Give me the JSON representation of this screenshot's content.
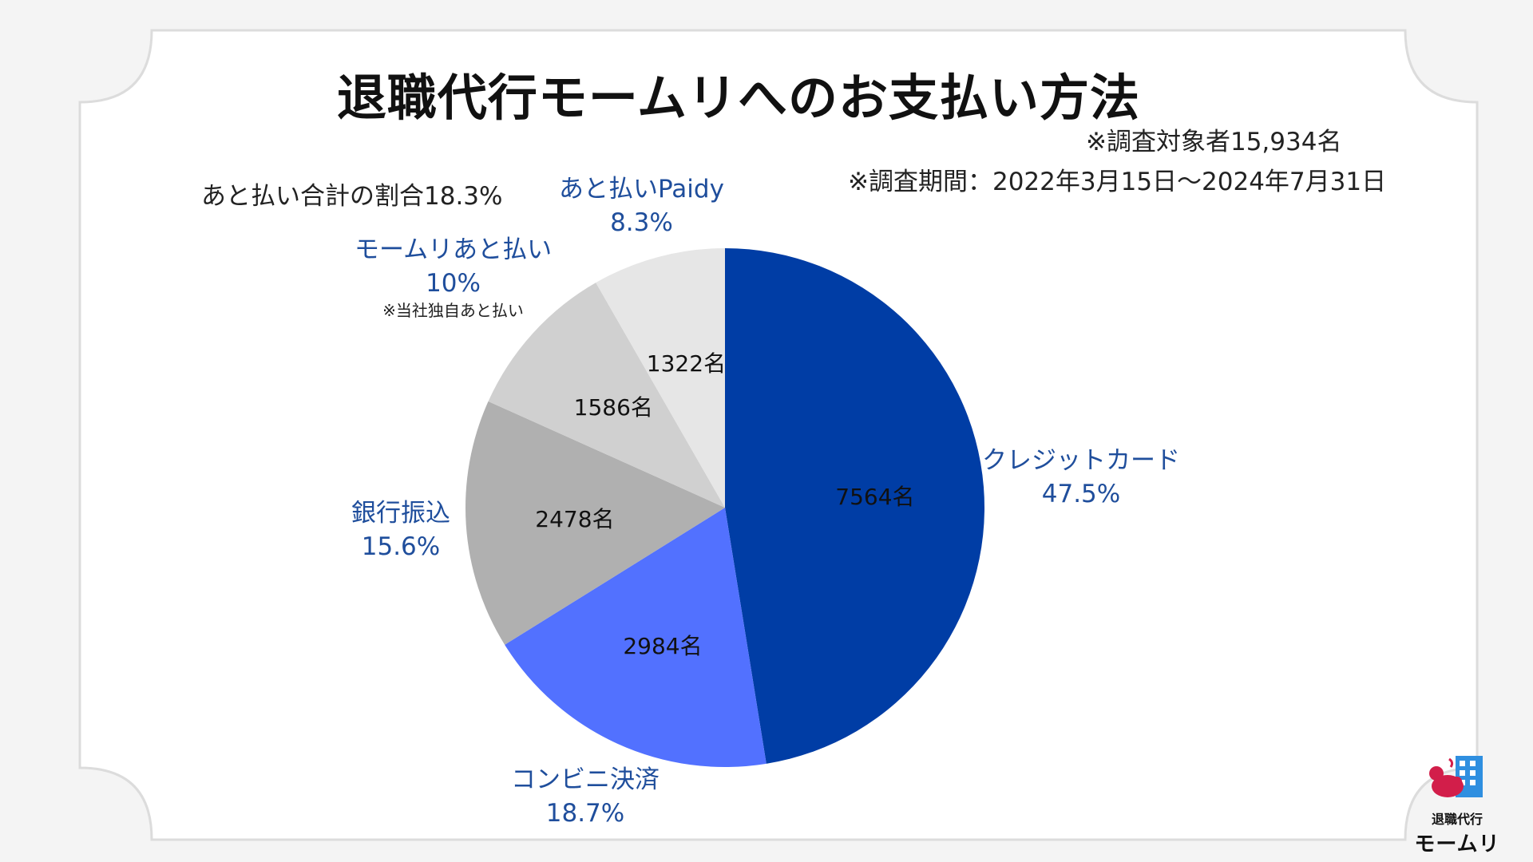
{
  "title": "退職代行モームリへのお支払い方法",
  "notes": {
    "respondents": "※調査対象者15,934名",
    "period": "※調査期間：2022年3月15日～2024年7月31日",
    "deferred_total": "あと払い合計の割合18.3%"
  },
  "colors": {
    "credit": "#003da5",
    "convenience": "#5271ff",
    "bank": "#b0b0b0",
    "momuri_later": "#d0d0d0",
    "paidy": "#e6e6e6",
    "label_blue": "#1f4e9c"
  },
  "chart_data": {
    "type": "pie",
    "title": "退職代行モームリへのお支払い方法",
    "total_respondents": "15,934名",
    "slices": [
      {
        "key": "credit",
        "label": "クレジットカード",
        "percent": 47.5,
        "percent_label": "47.5%",
        "count": 7564,
        "count_label": "7564名"
      },
      {
        "key": "convenience",
        "label": "コンビニ決済",
        "percent": 18.7,
        "percent_label": "18.7%",
        "count": 2984,
        "count_label": "2984名"
      },
      {
        "key": "bank",
        "label": "銀行振込",
        "percent": 15.6,
        "percent_label": "15.6%",
        "count": 2478,
        "count_label": "2478名"
      },
      {
        "key": "momuri_later",
        "label": "モームリあと払い",
        "percent": 10.0,
        "percent_label": "10%",
        "count": 1586,
        "count_label": "1586名",
        "sub_label": "※当社独自あと払い"
      },
      {
        "key": "paidy",
        "label": "あと払いPaidy",
        "percent": 8.3,
        "percent_label": "8.3%",
        "count": 1322,
        "count_label": "1322名"
      }
    ]
  },
  "logo": {
    "line1": "退職代行",
    "line2": "モームリ"
  }
}
